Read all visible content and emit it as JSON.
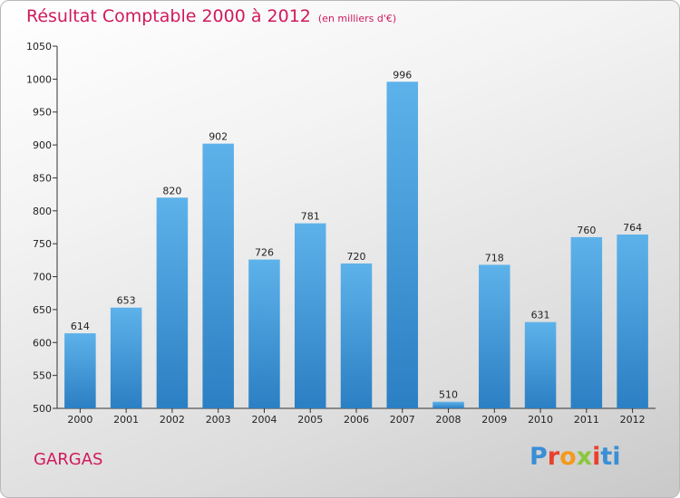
{
  "chart_data": {
    "type": "bar",
    "title": "Résultat Comptable 2000 à 2012",
    "subtitle": "(en milliers d'€)",
    "categories": [
      "2000",
      "2001",
      "2002",
      "2003",
      "2004",
      "2005",
      "2006",
      "2007",
      "2008",
      "2009",
      "2010",
      "2011",
      "2012"
    ],
    "values": [
      614,
      653,
      820,
      902,
      726,
      781,
      720,
      996,
      510,
      718,
      631,
      760,
      764
    ],
    "ylim": [
      500,
      1050
    ],
    "yticks": [
      500,
      550,
      600,
      650,
      700,
      750,
      800,
      850,
      900,
      950,
      1000,
      1050
    ],
    "xlabel": "",
    "ylabel": "",
    "grid": false,
    "bar_color": "#3a94d8"
  },
  "footer": {
    "town": "GARGAS",
    "logo_letters": [
      "P",
      "r",
      "o",
      "x",
      "i",
      "t",
      "i"
    ]
  },
  "colors": {
    "title": "#d1195c",
    "bar_top": "#5eb2ea",
    "bar_bottom": "#2b7fc3"
  }
}
